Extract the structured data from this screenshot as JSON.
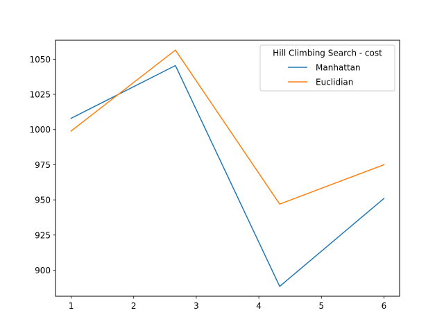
{
  "chart_data": {
    "type": "line",
    "title": "",
    "xlabel": "",
    "ylabel": "",
    "legend": {
      "title": "Hill Climbing Search - cost",
      "placement": "top-right"
    },
    "x": [
      1,
      2.6667,
      4.3333,
      6
    ],
    "xlim": [
      0.75,
      6.25
    ],
    "ylim": [
      881.5,
      1063.5
    ],
    "xticks": [
      1,
      2,
      3,
      4,
      5,
      6
    ],
    "yticks": [
      900,
      925,
      950,
      975,
      1000,
      1025,
      1050
    ],
    "grid": false,
    "series": [
      {
        "name": "Manhattan",
        "color": "#1f77b4",
        "values": [
          1008,
          1045.5,
          888.5,
          951
        ]
      },
      {
        "name": "Euclidian",
        "color": "#ff7f0e",
        "values": [
          999,
          1056.5,
          947,
          975
        ]
      }
    ]
  }
}
